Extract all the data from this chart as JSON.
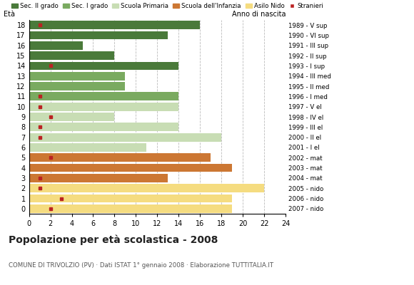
{
  "ages": [
    18,
    17,
    16,
    15,
    14,
    13,
    12,
    11,
    10,
    9,
    8,
    7,
    6,
    5,
    4,
    3,
    2,
    1,
    0
  ],
  "years": [
    "1989 - V sup",
    "1990 - VI sup",
    "1991 - III sup",
    "1992 - II sup",
    "1993 - I sup",
    "1994 - III med",
    "1995 - II med",
    "1996 - I med",
    "1997 - V el",
    "1998 - IV el",
    "1999 - III el",
    "2000 - II el",
    "2001 - I el",
    "2002 - mat",
    "2003 - mat",
    "2004 - mat",
    "2005 - nido",
    "2006 - nido",
    "2007 - nido"
  ],
  "values": [
    16,
    13,
    5,
    8,
    14,
    9,
    9,
    14,
    14,
    8,
    14,
    18,
    11,
    17,
    19,
    13,
    22,
    19,
    19
  ],
  "foreigners": [
    1,
    0,
    0,
    0,
    2,
    0,
    0,
    1,
    1,
    2,
    1,
    1,
    0,
    2,
    0,
    1,
    1,
    3,
    2
  ],
  "categories": [
    "Sec. II grado",
    "Sec. I grado",
    "Scuola Primaria",
    "Scuola dell'Infanzia",
    "Asilo Nido"
  ],
  "bar_colors": {
    "Sec. II grado": "#4a7a3a",
    "Sec. I grado": "#7aaa60",
    "Scuola Primaria": "#c8ddb4",
    "Scuola dell'Infanzia": "#cc7733",
    "Asilo Nido": "#f5dc80"
  },
  "age_category": {
    "18": "Sec. II grado",
    "17": "Sec. II grado",
    "16": "Sec. II grado",
    "15": "Sec. II grado",
    "14": "Sec. II grado",
    "13": "Sec. I grado",
    "12": "Sec. I grado",
    "11": "Sec. I grado",
    "10": "Scuola Primaria",
    "9": "Scuola Primaria",
    "8": "Scuola Primaria",
    "7": "Scuola Primaria",
    "6": "Scuola Primaria",
    "5": "Scuola dell'Infanzia",
    "4": "Scuola dell'Infanzia",
    "3": "Scuola dell'Infanzia",
    "2": "Asilo Nido",
    "1": "Asilo Nido",
    "0": "Asilo Nido"
  },
  "title": "Popolazione per età scolastica - 2008",
  "subtitle": "COMUNE DI TRIVOLZIO (PV) · Dati ISTAT 1° gennaio 2008 · Elaborazione TUTTITALIA.IT",
  "label_left": "Età",
  "label_right": "Anno di nascita",
  "xlim": [
    0,
    24
  ],
  "xticks": [
    0,
    2,
    4,
    6,
    8,
    10,
    12,
    14,
    16,
    18,
    20,
    22,
    24
  ],
  "legend_color_stranieri": "#bb2222",
  "grid_color": "#bbbbbb"
}
